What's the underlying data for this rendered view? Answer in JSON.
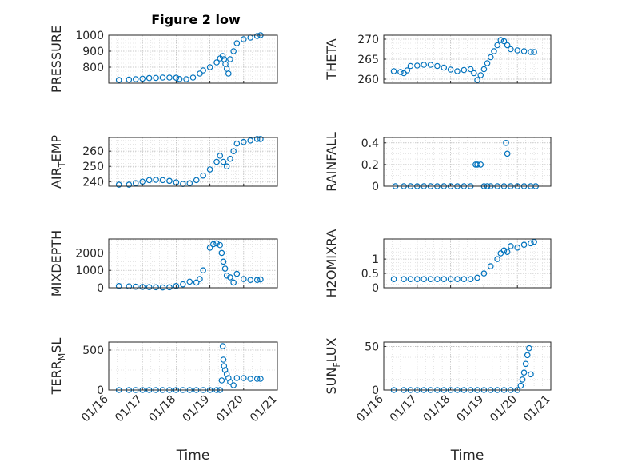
{
  "figure": {
    "title": "Figure 2 low"
  },
  "chart_data": [
    {
      "type": "scatter",
      "ylabel": "PRESSURE",
      "ylim": [
        700,
        1000
      ],
      "yticks": [
        800,
        900,
        1000
      ],
      "x": [
        16.3,
        16.6,
        16.8,
        17.0,
        17.2,
        17.4,
        17.6,
        17.8,
        18.0,
        18.1,
        18.3,
        18.5,
        18.7,
        18.8,
        19.0,
        19.2,
        19.3,
        19.38,
        19.42,
        19.46,
        19.5,
        19.55,
        19.6,
        19.7,
        19.8,
        20.0,
        20.2,
        20.4,
        20.5
      ],
      "y": [
        720,
        722,
        725,
        728,
        732,
        733,
        735,
        735,
        734,
        726,
        725,
        735,
        760,
        780,
        800,
        830,
        855,
        870,
        850,
        820,
        790,
        760,
        850,
        900,
        950,
        975,
        985,
        995,
        1000
      ]
    },
    {
      "type": "scatter",
      "ylabel": "THETA",
      "ylim": [
        259,
        271
      ],
      "yticks": [
        260,
        265,
        270
      ],
      "x": [
        16.3,
        16.5,
        16.6,
        16.7,
        16.8,
        17.0,
        17.2,
        17.4,
        17.6,
        17.8,
        18.0,
        18.2,
        18.4,
        18.6,
        18.7,
        18.8,
        18.9,
        19.0,
        19.1,
        19.2,
        19.3,
        19.4,
        19.5,
        19.6,
        19.7,
        19.8,
        20.0,
        20.2,
        20.4,
        20.5
      ],
      "y": [
        262,
        261.8,
        261.5,
        262.2,
        263.3,
        263.4,
        263.6,
        263.6,
        263.3,
        262.9,
        262.4,
        262.0,
        262.3,
        262.5,
        261.5,
        259.8,
        261,
        262.5,
        264,
        265.5,
        267,
        268.5,
        269.8,
        269.5,
        268.5,
        267.5,
        267.2,
        267,
        266.8,
        266.8
      ]
    },
    {
      "type": "scatter",
      "ylabel": "AIR",
      "ylabel_sub": "T",
      "ylabel_after": "EMP",
      "ylim": [
        237,
        269
      ],
      "yticks": [
        240,
        250,
        260
      ],
      "x": [
        16.3,
        16.6,
        16.8,
        17.0,
        17.2,
        17.4,
        17.6,
        17.8,
        18.0,
        18.2,
        18.4,
        18.6,
        18.8,
        19.0,
        19.2,
        19.3,
        19.4,
        19.5,
        19.6,
        19.7,
        19.8,
        20.0,
        20.2,
        20.4,
        20.5
      ],
      "y": [
        238,
        238,
        239,
        240,
        241,
        241.2,
        241,
        240.5,
        239.5,
        238.5,
        239,
        241,
        244,
        248,
        253,
        257,
        253,
        250,
        255,
        260,
        265,
        266,
        267,
        268,
        268
      ]
    },
    {
      "type": "scatter",
      "ylabel": "RAINFALL",
      "ylim": [
        0,
        0.45
      ],
      "yticks": [
        0,
        0.2,
        0.4
      ],
      "x": [
        16.35,
        16.6,
        16.8,
        17.0,
        17.2,
        17.4,
        17.6,
        17.8,
        18.0,
        18.2,
        18.4,
        18.6,
        18.75,
        18.8,
        18.9,
        19.0,
        19.1,
        19.2,
        19.4,
        19.6,
        19.66,
        19.7,
        19.8,
        20.0,
        20.2,
        20.4,
        20.55
      ],
      "y": [
        0,
        0,
        0,
        0,
        0,
        0,
        0,
        0,
        0,
        0,
        0,
        0,
        0.2,
        0.2,
        0.2,
        0,
        0,
        0,
        0,
        0,
        0.4,
        0.3,
        0,
        0,
        0,
        0,
        0
      ]
    },
    {
      "type": "scatter",
      "ylabel": "MIXDEPTH",
      "ylim": [
        0,
        2800
      ],
      "yticks": [
        0,
        1000,
        2000
      ],
      "x": [
        16.3,
        16.6,
        16.8,
        17.0,
        17.2,
        17.4,
        17.6,
        17.8,
        18.0,
        18.2,
        18.4,
        18.6,
        18.7,
        18.8,
        19.0,
        19.1,
        19.2,
        19.3,
        19.35,
        19.4,
        19.45,
        19.5,
        19.6,
        19.7,
        19.8,
        20.0,
        20.2,
        20.4,
        20.5
      ],
      "y": [
        100,
        80,
        60,
        50,
        40,
        30,
        20,
        30,
        100,
        200,
        350,
        300,
        500,
        1000,
        2300,
        2500,
        2550,
        2450,
        2000,
        1500,
        1100,
        700,
        600,
        300,
        800,
        500,
        450,
        450,
        480
      ]
    },
    {
      "type": "scatter",
      "ylabel": "H2OMIXRA",
      "ylim": [
        0,
        1.7
      ],
      "yticks": [
        0,
        0.5,
        1
      ],
      "x": [
        16.3,
        16.6,
        16.8,
        17.0,
        17.2,
        17.4,
        17.6,
        17.8,
        18.0,
        18.2,
        18.4,
        18.6,
        18.8,
        19.0,
        19.2,
        19.4,
        19.5,
        19.6,
        19.7,
        19.8,
        20.0,
        20.2,
        20.4,
        20.5
      ],
      "y": [
        0.3,
        0.3,
        0.3,
        0.3,
        0.3,
        0.3,
        0.3,
        0.3,
        0.3,
        0.3,
        0.3,
        0.3,
        0.35,
        0.5,
        0.75,
        1.0,
        1.2,
        1.3,
        1.25,
        1.45,
        1.4,
        1.5,
        1.55,
        1.6
      ]
    },
    {
      "type": "scatter",
      "ylabel": "TERR",
      "ylabel_sub": "M",
      "ylabel_after": "SL",
      "ylim": [
        0,
        600
      ],
      "yticks": [
        0,
        500
      ],
      "x": [
        16.3,
        16.6,
        16.8,
        17.0,
        17.2,
        17.4,
        17.6,
        17.8,
        18.0,
        18.2,
        18.4,
        18.6,
        18.8,
        19.0,
        19.2,
        19.3,
        19.35,
        19.38,
        19.4,
        19.42,
        19.45,
        19.5,
        19.55,
        19.6,
        19.7,
        19.8,
        20.0,
        20.2,
        20.4,
        20.5
      ],
      "y": [
        0,
        0,
        0,
        0,
        0,
        0,
        0,
        0,
        0,
        0,
        0,
        0,
        0,
        0,
        0,
        0,
        120,
        550,
        380,
        300,
        250,
        200,
        150,
        100,
        60,
        150,
        150,
        140,
        140,
        140
      ]
    },
    {
      "type": "scatter",
      "ylabel": "SUN",
      "ylabel_sub": "F",
      "ylabel_after": "LUX",
      "ylim": [
        0,
        55
      ],
      "yticks": [
        0,
        50
      ],
      "x": [
        16.3,
        16.6,
        16.8,
        17.0,
        17.2,
        17.4,
        17.6,
        17.8,
        18.0,
        18.2,
        18.4,
        18.6,
        18.8,
        19.0,
        19.2,
        19.4,
        19.6,
        19.8,
        20.0,
        20.1,
        20.15,
        20.2,
        20.25,
        20.3,
        20.35,
        20.4
      ],
      "y": [
        0,
        0,
        0,
        0,
        0,
        0,
        0,
        0,
        0,
        0,
        0,
        0,
        0,
        0,
        0,
        0,
        0,
        0,
        0,
        5,
        12,
        20,
        30,
        40,
        48,
        18
      ]
    }
  ],
  "axes": {
    "xlim": [
      16,
      21
    ],
    "xticks": [
      16,
      17,
      18,
      19,
      20,
      21
    ],
    "xtick_labels": [
      "01/16",
      "01/17",
      "01/18",
      "01/19",
      "01/20",
      "01/21"
    ],
    "xlabel": "Time",
    "grid": true,
    "grid_minor": true,
    "marker_color": "#0072BD"
  }
}
